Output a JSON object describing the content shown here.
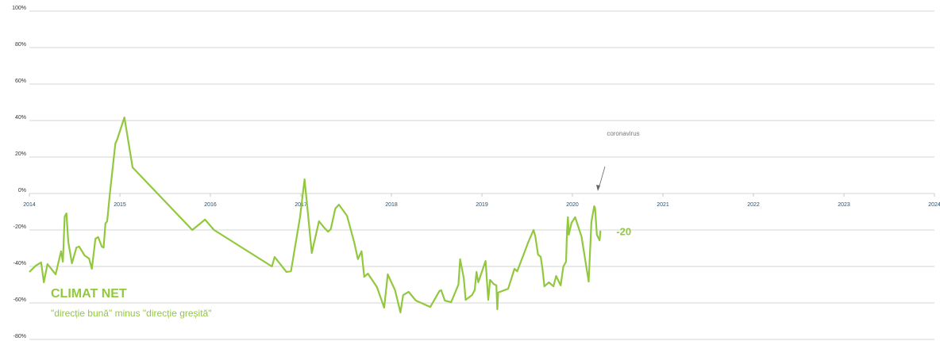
{
  "chart_data": {
    "type": "line",
    "title": "CLIMAT NET",
    "subtitle": "\"direcție bună\" minus \"direcție greșită\"",
    "annotations": [
      "coronavirus",
      "-20"
    ],
    "color": "#92c83e",
    "grid": true,
    "xlim": [
      2014,
      2024
    ],
    "xticks": [
      2014,
      2015,
      2016,
      2017,
      2018,
      2019,
      2020,
      2021,
      2022,
      2023,
      2024
    ],
    "ylim": [
      -80,
      100
    ],
    "yticks": [
      {
        "value": 100,
        "label": "100%"
      },
      {
        "value": 80,
        "label": "80%"
      },
      {
        "value": 60,
        "label": "60%"
      },
      {
        "value": 40,
        "label": "40%"
      },
      {
        "value": 20,
        "label": "20%"
      },
      {
        "value": 0,
        "label": "0%"
      },
      {
        "value": -20,
        "label": "-20%"
      },
      {
        "value": -40,
        "label": "-40%"
      },
      {
        "value": -60,
        "label": "-60%"
      },
      {
        "value": -80,
        "label": "-80%"
      }
    ],
    "x": [
      2014.0,
      2014.07,
      2014.13,
      2014.16,
      2014.2,
      2014.29,
      2014.35,
      2014.37,
      2014.39,
      2014.41,
      2014.43,
      2014.47,
      2014.52,
      2014.55,
      2014.61,
      2014.66,
      2014.69,
      2014.73,
      2014.76,
      2014.8,
      2014.82,
      2014.84,
      2014.86,
      2014.89,
      2014.95,
      2014.97,
      2015.05,
      2015.14,
      2015.8,
      2015.94,
      2016.04,
      2016.68,
      2016.71,
      2016.84,
      2016.89,
      2016.99,
      2017.04,
      2017.07,
      2017.12,
      2017.2,
      2017.25,
      2017.3,
      2017.33,
      2017.38,
      2017.42,
      2017.51,
      2017.59,
      2017.63,
      2017.67,
      2017.7,
      2017.74,
      2017.84,
      2017.92,
      2017.96,
      2018.04,
      2018.1,
      2018.13,
      2018.19,
      2018.27,
      2018.43,
      2018.53,
      2018.55,
      2018.59,
      2018.66,
      2018.74,
      2018.76,
      2018.8,
      2018.82,
      2018.89,
      2018.92,
      2018.94,
      2018.96,
      2019.04,
      2019.07,
      2019.09,
      2019.13,
      2019.16,
      2019.17,
      2019.18,
      2019.29,
      2019.36,
      2019.39,
      2019.47,
      2019.51,
      2019.57,
      2019.59,
      2019.62,
      2019.65,
      2019.67,
      2019.69,
      2019.74,
      2019.79,
      2019.82,
      2019.87,
      2019.9,
      2019.93,
      2019.94,
      2019.95,
      2019.96,
      2019.99,
      2020.03,
      2020.1,
      2020.18,
      2020.21,
      2020.24,
      2020.25,
      2020.27,
      2020.3,
      2020.31
    ],
    "values": [
      -43,
      -39.6,
      -37.8,
      -48.7,
      -38.7,
      -44.3,
      -31.7,
      -37.4,
      -12.6,
      -10.9,
      -26.5,
      -38.3,
      -29.6,
      -29.1,
      -33.9,
      -35.7,
      -41.3,
      -24.8,
      -23.9,
      -29.1,
      -29.6,
      -16.5,
      -15.2,
      0.4,
      27.4,
      29.6,
      41.7,
      14.3,
      -20,
      -14.3,
      -20,
      -40,
      -34.8,
      -43,
      -42.6,
      -13,
      7.8,
      -7,
      -32.6,
      -15.2,
      -18.3,
      -20.9,
      -19.6,
      -8.3,
      -6.1,
      -12.2,
      -27,
      -36,
      -31.7,
      -45.7,
      -43.9,
      -51.3,
      -62.6,
      -44.3,
      -53,
      -65.2,
      -55.7,
      -53.9,
      -58.7,
      -62.2,
      -53.5,
      -53,
      -58.7,
      -59.6,
      -50,
      -36,
      -46.5,
      -58.3,
      -55.7,
      -53,
      -43,
      -48.7,
      -37,
      -58.3,
      -47.4,
      -49.6,
      -50.4,
      -63.5,
      -54.3,
      -52.2,
      -41.3,
      -42.6,
      -32.2,
      -27,
      -20,
      -23.5,
      -33.5,
      -34.8,
      -41.7,
      -50.9,
      -48.7,
      -50.9,
      -45.2,
      -50.4,
      -40,
      -37.4,
      -20.9,
      -13,
      -22.6,
      -16.1,
      -13,
      -23.5,
      -48.3,
      -15.7,
      -7,
      -7.8,
      -22.6,
      -25.7,
      -20.4
    ]
  }
}
